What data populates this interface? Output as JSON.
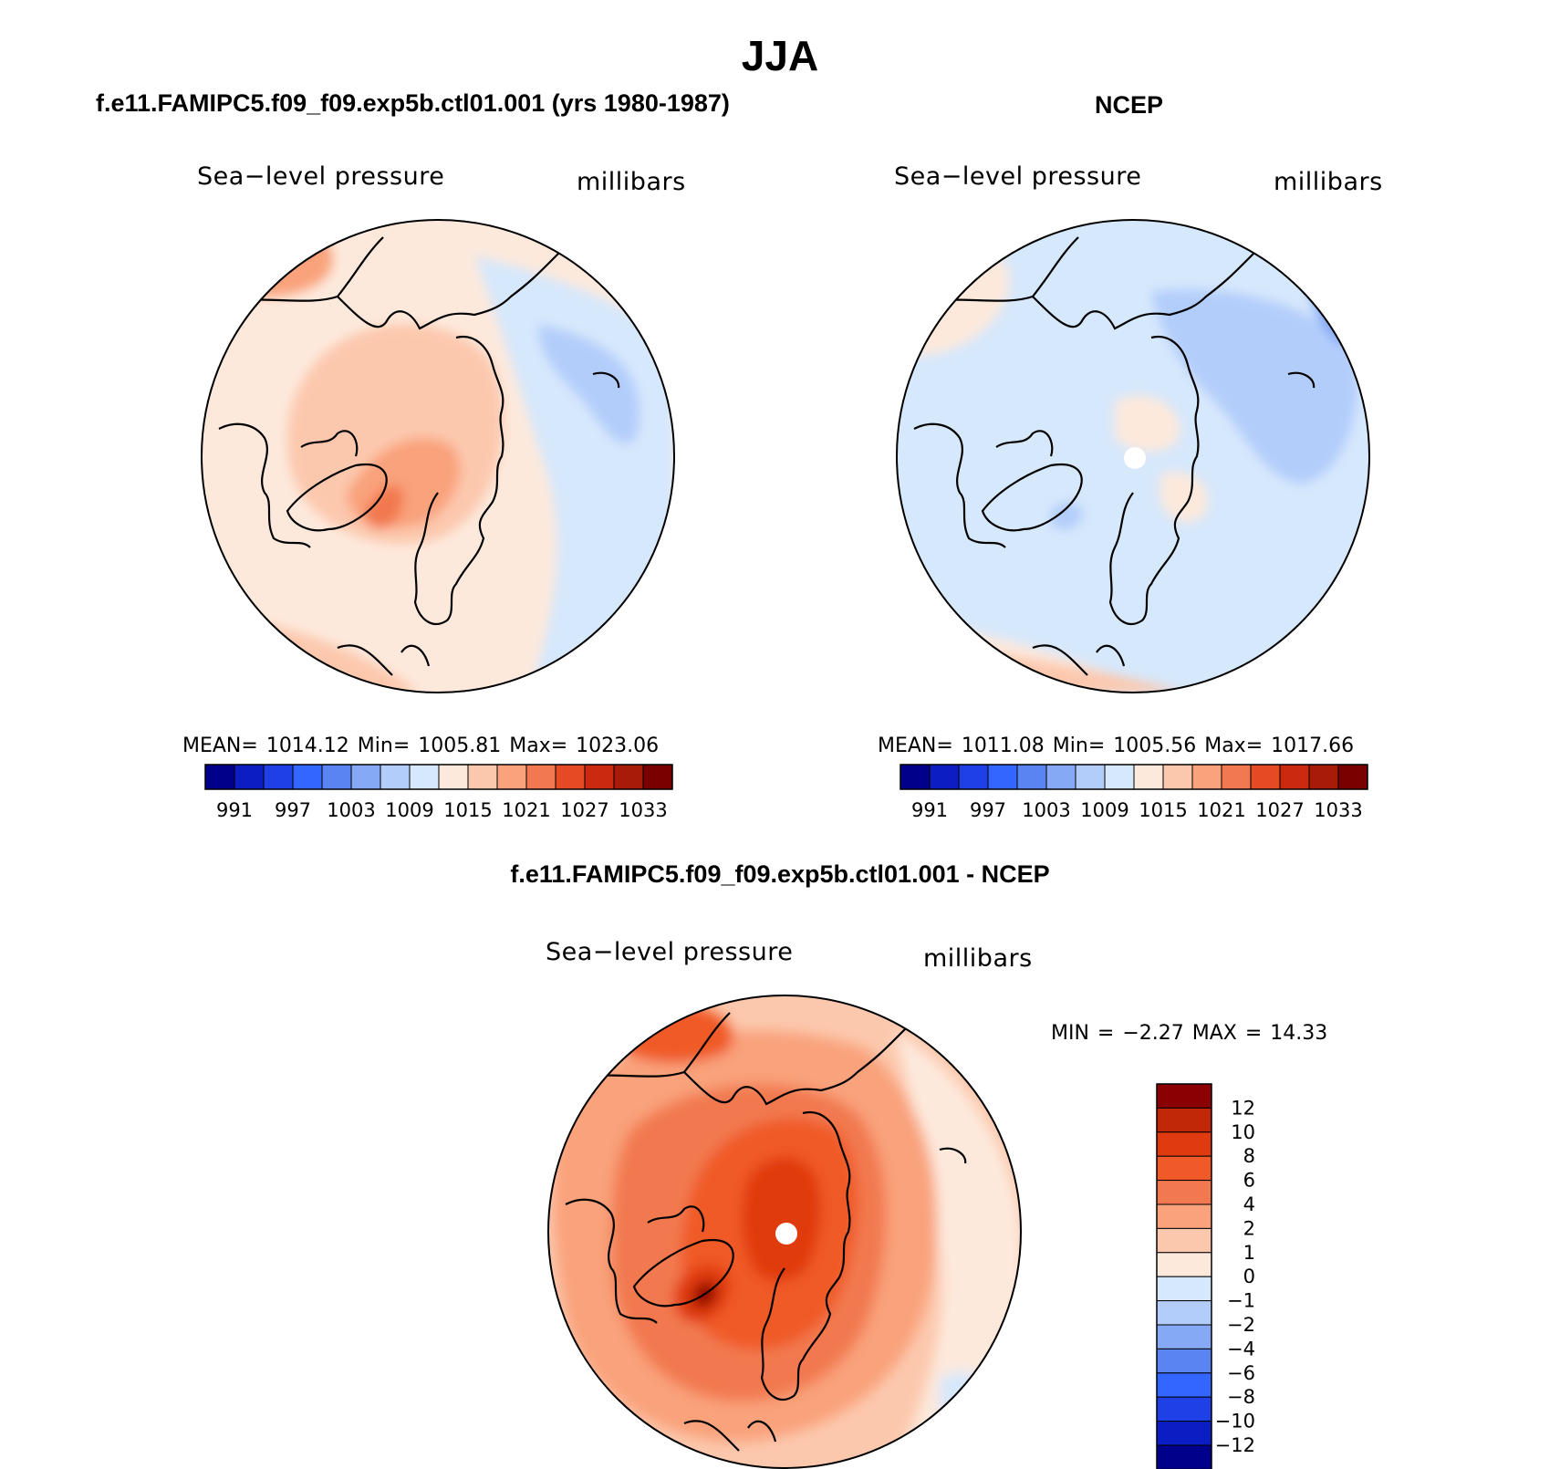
{
  "season": "JJA",
  "case_title": "f.e11.FAMIPC5.f09_f09.exp5b.ctl01.001 (yrs 1980-1987)",
  "obs_title": "NCEP",
  "diff_title": "f.e11.FAMIPC5.f09_f09.exp5b.ctl01.001 - NCEP",
  "colors": {
    "abs_scale": [
      "#00008b",
      "#0a1ec4",
      "#1f40e6",
      "#3366ff",
      "#5a84f2",
      "#86a9f5",
      "#b3cdfb",
      "#d6e8fc",
      "#fde9dc",
      "#fcc8ad",
      "#f9a27c",
      "#f2794f",
      "#e64a24",
      "#cc2a10",
      "#a81b08",
      "#7a0000"
    ],
    "diff_scale": [
      "#00008b",
      "#0a1ec4",
      "#1f40e6",
      "#3366ff",
      "#5a84f2",
      "#86a9f5",
      "#b3cdfb",
      "#d6e8fc",
      "#fde9dc",
      "#fcc8ad",
      "#f9a27c",
      "#f2794f",
      "#f05a28",
      "#e03a10",
      "#c02808",
      "#8b0000"
    ],
    "coastline": "#000000"
  },
  "panels": {
    "case": {
      "variable": "Sea−level pressure",
      "units": "millibars",
      "stats": "MEAN= 1014.12   Min= 1005.81   Max= 1023.06"
    },
    "obs": {
      "variable": "Sea−level pressure",
      "units": "millibars",
      "stats": "MEAN= 1011.08   Min= 1005.56   Max= 1017.66"
    },
    "diff": {
      "variable": "Sea−level pressure",
      "units": "millibars",
      "stats": "MIN =   −2.27 MAX =   14.33"
    }
  },
  "chart_data": [
    {
      "type": "heatmap",
      "projection": "north polar stereographic",
      "title": "f.e11.FAMIPC5.f09_f09.exp5b.ctl01.001 (yrs 1980-1987)",
      "variable": "Sea−level pressure",
      "units": "millibars",
      "mean": 1014.12,
      "min": 1005.81,
      "max": 1023.06,
      "colorbar_ticks": [
        "991",
        "997",
        "1003",
        "1009",
        "1015",
        "1021",
        "1027",
        "1033"
      ]
    },
    {
      "type": "heatmap",
      "projection": "north polar stereographic",
      "title": "NCEP",
      "variable": "Sea−level pressure",
      "units": "millibars",
      "mean": 1011.08,
      "min": 1005.56,
      "max": 1017.66,
      "colorbar_ticks": [
        "991",
        "997",
        "1003",
        "1009",
        "1015",
        "1021",
        "1027",
        "1033"
      ]
    },
    {
      "type": "heatmap",
      "projection": "north polar stereographic",
      "title": "f.e11.FAMIPC5.f09_f09.exp5b.ctl01.001 - NCEP",
      "variable": "Sea−level pressure",
      "units": "millibars",
      "min": -2.27,
      "max": 14.33,
      "colorbar_ticks": [
        "12",
        "10",
        "8",
        "6",
        "4",
        "2",
        "1",
        "0",
        "−1",
        "−2",
        "−4",
        "−6",
        "−8",
        "−10",
        "−12"
      ]
    }
  ]
}
